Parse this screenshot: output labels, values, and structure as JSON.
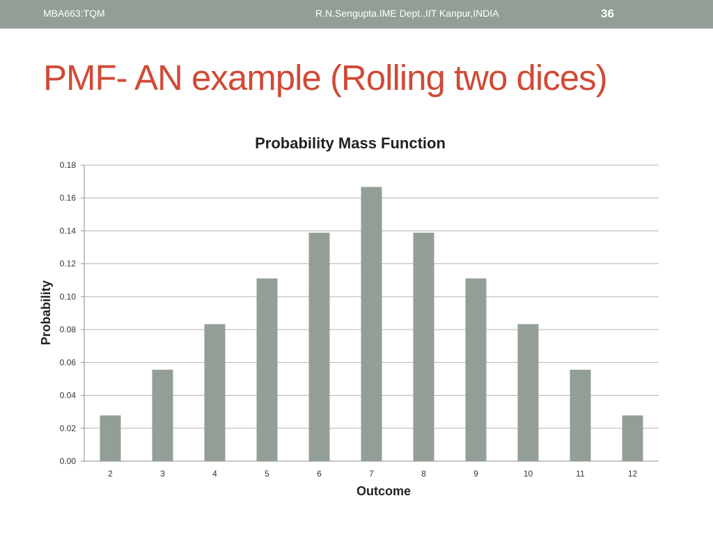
{
  "header": {
    "course": "MBA663:TQM",
    "author": "R.N.Sengupta.IME Dept.,IIT Kanpur,INDIA",
    "page_number": "36"
  },
  "slide": {
    "title": "PMF- AN example (Rolling two dices)"
  },
  "colors": {
    "header_bar": "#939f96",
    "title": "#d04a36",
    "bar": "#939f96",
    "grid": "#b3b3b3"
  },
  "chart_data": {
    "type": "bar",
    "title": "Probability Mass Function",
    "xlabel": "Outcome",
    "ylabel": "Probability",
    "categories": [
      "2",
      "3",
      "4",
      "5",
      "6",
      "7",
      "8",
      "9",
      "10",
      "11",
      "12"
    ],
    "values": [
      0.0278,
      0.0556,
      0.0833,
      0.1111,
      0.1389,
      0.1667,
      0.1389,
      0.1111,
      0.0833,
      0.0556,
      0.0278
    ],
    "ylim": [
      0,
      0.18
    ],
    "yticks": [
      "0.00",
      "0.02",
      "0.04",
      "0.06",
      "0.08",
      "0.10",
      "0.12",
      "0.14",
      "0.16",
      "0.18"
    ],
    "grid": true,
    "legend": "none"
  }
}
